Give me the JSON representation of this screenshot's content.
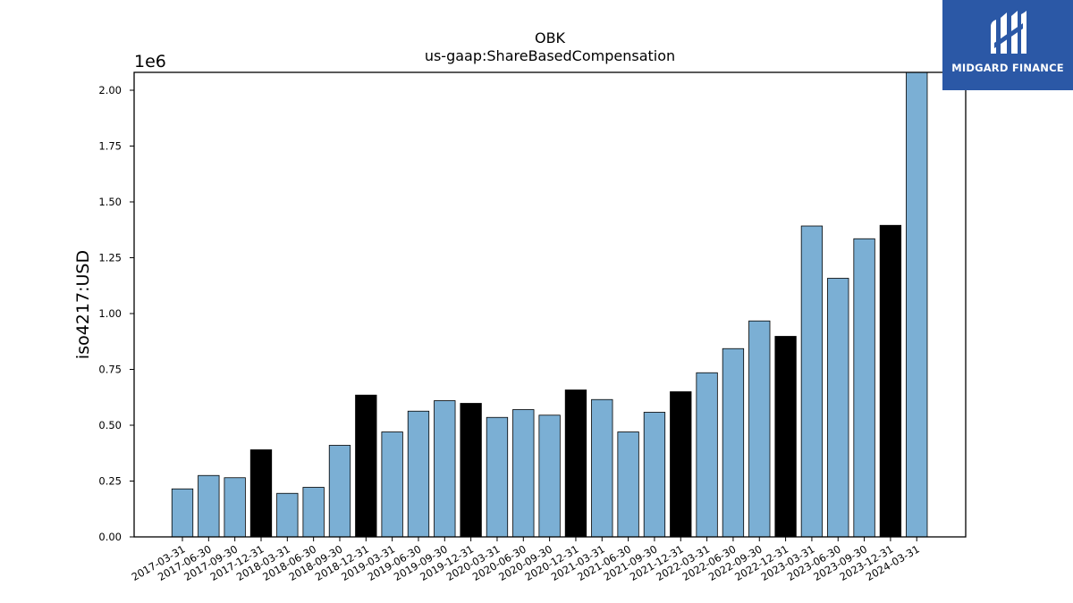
{
  "chart_data": {
    "type": "bar",
    "title": "OBK",
    "subtitle": "us-gaap:ShareBasedCompensation",
    "ylabel": "iso4217:USD",
    "xlabel": "",
    "y_scale_label": "1e6",
    "y_scale": 1000000,
    "ylim": [
      0,
      2.08
    ],
    "yticks": [
      0.0,
      0.25,
      0.5,
      0.75,
      1.0,
      1.25,
      1.5,
      1.75,
      2.0
    ],
    "categories": [
      "2017-03-31",
      "2017-06-30",
      "2017-09-30",
      "2017-12-31",
      "2018-03-31",
      "2018-06-30",
      "2018-09-30",
      "2018-12-31",
      "2019-03-31",
      "2019-06-30",
      "2019-09-30",
      "2019-12-31",
      "2020-03-31",
      "2020-06-30",
      "2020-09-30",
      "2020-12-31",
      "2021-03-31",
      "2021-06-30",
      "2021-09-30",
      "2021-12-31",
      "2022-03-31",
      "2022-06-30",
      "2022-09-30",
      "2022-12-31",
      "2023-03-31",
      "2023-06-30",
      "2023-09-30",
      "2023-12-31",
      "2024-03-31"
    ],
    "values": [
      0.215,
      0.275,
      0.265,
      0.39,
      0.195,
      0.222,
      0.41,
      0.635,
      0.47,
      0.563,
      0.61,
      0.598,
      0.535,
      0.57,
      0.545,
      0.658,
      0.615,
      0.47,
      0.558,
      0.65,
      0.735,
      0.843,
      0.967,
      0.898,
      1.392,
      1.158,
      1.335,
      1.395,
      2.08
    ],
    "highlight": [
      false,
      false,
      false,
      true,
      false,
      false,
      false,
      true,
      false,
      false,
      false,
      true,
      false,
      false,
      false,
      true,
      false,
      false,
      false,
      true,
      false,
      false,
      false,
      true,
      false,
      false,
      false,
      true,
      false
    ],
    "colors": {
      "normal": "#7bafd4",
      "highlight": "#000000",
      "edge": "#000000"
    },
    "grid": false
  },
  "logo": {
    "text": "MIDGARD FINANCE",
    "bg": "#2b58a6"
  }
}
